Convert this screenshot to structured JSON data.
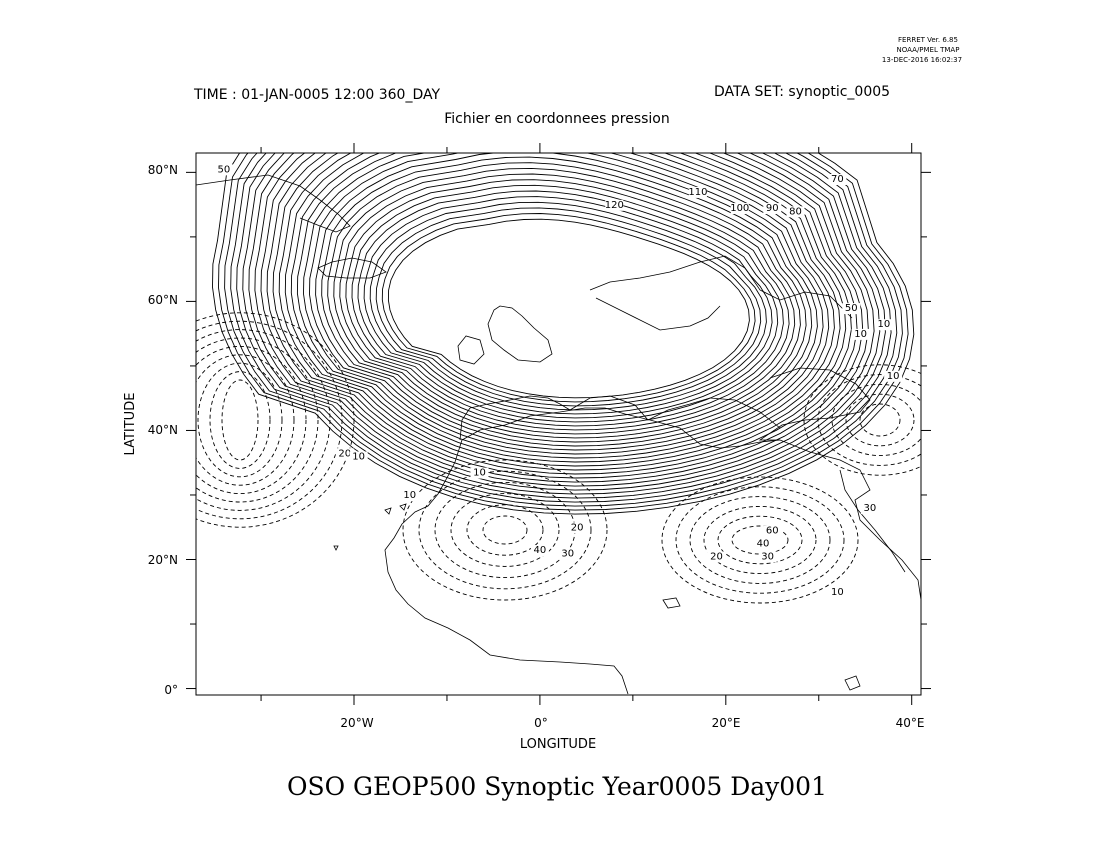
{
  "stamp": {
    "line1": "FERRET Ver. 6.85",
    "line2": "NOAA/PMEL TMAP",
    "line3": "13-DEC-2016 16:02:37"
  },
  "header": {
    "time": "TIME : 01-JAN-0005 12:00 360_DAY",
    "dataset": "DATA SET: synoptic_0005",
    "subtitle": "Fichier en coordonnees pression"
  },
  "axes": {
    "xlabel": "LONGITUDE",
    "ylabel": "LATITUDE",
    "x_ticklabels": [
      "20°W",
      "0°",
      "20°E",
      "40°E"
    ],
    "y_ticklabels": [
      "80°N",
      "60°N",
      "40°N",
      "20°N",
      "0°"
    ]
  },
  "title": "OSO GEOP500 Synoptic Year0005 Day001",
  "chart_data": {
    "type": "contour",
    "variable": "GEOP500",
    "xlim": [
      -37,
      41
    ],
    "ylim": [
      -1,
      83
    ],
    "x_ticks": [
      -20,
      0,
      20,
      40
    ],
    "y_ticks": [
      80,
      60,
      40,
      20,
      0
    ],
    "solid_contours_positive": true,
    "dashed_contours_negative": true,
    "contour_labels": [
      {
        "lon": -34,
        "lat": 80,
        "text": "50"
      },
      {
        "lon": 8,
        "lat": 74.5,
        "text": "120"
      },
      {
        "lon": 17,
        "lat": 76.5,
        "text": "110"
      },
      {
        "lon": 21.5,
        "lat": 74,
        "text": "100"
      },
      {
        "lon": 25,
        "lat": 74,
        "text": "90"
      },
      {
        "lon": 27.5,
        "lat": 73.5,
        "text": "80"
      },
      {
        "lon": 32,
        "lat": 78.5,
        "text": "70"
      },
      {
        "lon": 34.5,
        "lat": 54.5,
        "text": "10"
      },
      {
        "lon": 37,
        "lat": 56,
        "text": "10"
      },
      {
        "lon": 33.5,
        "lat": 58.5,
        "text": "50"
      },
      {
        "lon": 38,
        "lat": 48,
        "text": "10"
      },
      {
        "lon": -21,
        "lat": 36,
        "text": "20"
      },
      {
        "lon": -19.5,
        "lat": 35.5,
        "text": "10"
      },
      {
        "lon": -6.5,
        "lat": 33,
        "text": "10"
      },
      {
        "lon": -14,
        "lat": 29.5,
        "text": "10"
      },
      {
        "lon": 4,
        "lat": 24.5,
        "text": "20"
      },
      {
        "lon": 0,
        "lat": 21,
        "text": "40"
      },
      {
        "lon": 3,
        "lat": 20.5,
        "text": "30"
      },
      {
        "lon": 25,
        "lat": 24,
        "text": "60"
      },
      {
        "lon": 24,
        "lat": 22,
        "text": "40"
      },
      {
        "lon": 24.5,
        "lat": 20,
        "text": "30"
      },
      {
        "lon": 19,
        "lat": 20,
        "text": "20"
      },
      {
        "lon": 32,
        "lat": 14.5,
        "text": "10"
      },
      {
        "lon": 35.5,
        "lat": 27.5,
        "text": "30"
      }
    ]
  }
}
